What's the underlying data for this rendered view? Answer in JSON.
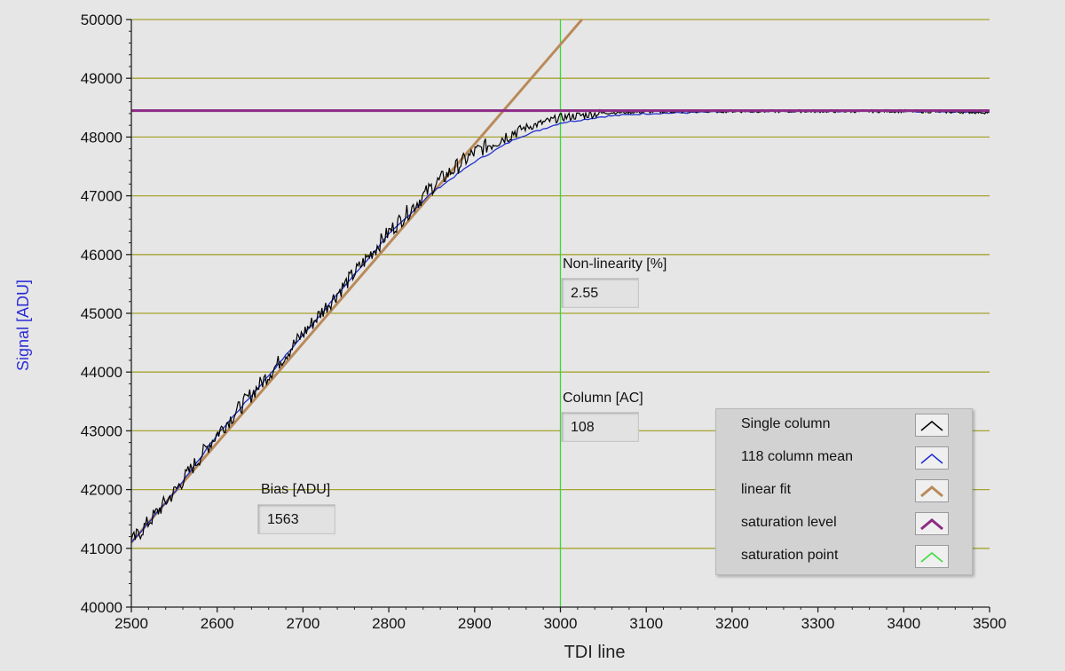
{
  "chart_data": {
    "type": "line",
    "xlabel": "TDI line",
    "ylabel": "Signal [ADU]",
    "xlim": [
      2500,
      3500
    ],
    "ylim": [
      40000,
      50000
    ],
    "xticks": [
      2500,
      2600,
      2700,
      2800,
      2900,
      3000,
      3100,
      3200,
      3300,
      3400,
      3500
    ],
    "yticks": [
      40000,
      41000,
      42000,
      43000,
      44000,
      45000,
      46000,
      47000,
      48000,
      49000,
      50000
    ],
    "grid": "horizontal",
    "series": [
      {
        "name": "Single column",
        "color": "#000000",
        "x": [
          2500,
          2550,
          2600,
          2650,
          2700,
          2750,
          2800,
          2850,
          2900,
          2950,
          3000,
          3050,
          3100,
          3200,
          3300,
          3400,
          3500
        ],
        "y": [
          41100,
          41960,
          42950,
          43790,
          44650,
          45510,
          46380,
          47150,
          47740,
          48120,
          48330,
          48410,
          48430,
          48440,
          48440,
          48440,
          48420
        ]
      },
      {
        "name": "118 column mean",
        "color": "#1f2fcf",
        "x": [
          2500,
          2550,
          2600,
          2650,
          2700,
          2750,
          2800,
          2850,
          2900,
          2950,
          3000,
          3050,
          3100,
          3200,
          3300,
          3400,
          3500
        ],
        "y": [
          41100,
          41950,
          42930,
          43770,
          44630,
          45490,
          46340,
          47050,
          47580,
          47990,
          48240,
          48350,
          48400,
          48430,
          48440,
          48440,
          48430
        ]
      },
      {
        "name": "linear fit",
        "color": "#b98a5a",
        "x": [
          2500,
          3025
        ],
        "y": [
          41100,
          50000
        ]
      },
      {
        "name": "saturation level",
        "color": "#8d2a85",
        "x": [
          2500,
          3500
        ],
        "y": [
          48450,
          48450
        ]
      },
      {
        "name": "saturation point",
        "color": "#33dd33",
        "x": [
          3000,
          3000
        ],
        "y": [
          40000,
          50000
        ]
      }
    ]
  },
  "colors": {
    "grid": "#a7a331",
    "plot_background": "#e6e6e6",
    "ylabel": "#2d2dd6"
  },
  "indicators": {
    "nonlinearity": {
      "label": "Non-linearity [%]",
      "value": "2.55"
    },
    "column": {
      "label": "Column [AC]",
      "value": "108"
    },
    "bias": {
      "label": "Bias [ADU]",
      "value": "1563"
    }
  },
  "legend": [
    {
      "name": "Single column",
      "icon": "black-line-icon"
    },
    {
      "name": "118 column mean",
      "icon": "blue-line-icon"
    },
    {
      "name": "linear fit",
      "icon": "tan-line-icon"
    },
    {
      "name": "saturation level",
      "icon": "purple-line-icon"
    },
    {
      "name": "saturation point",
      "icon": "green-line-icon"
    }
  ]
}
